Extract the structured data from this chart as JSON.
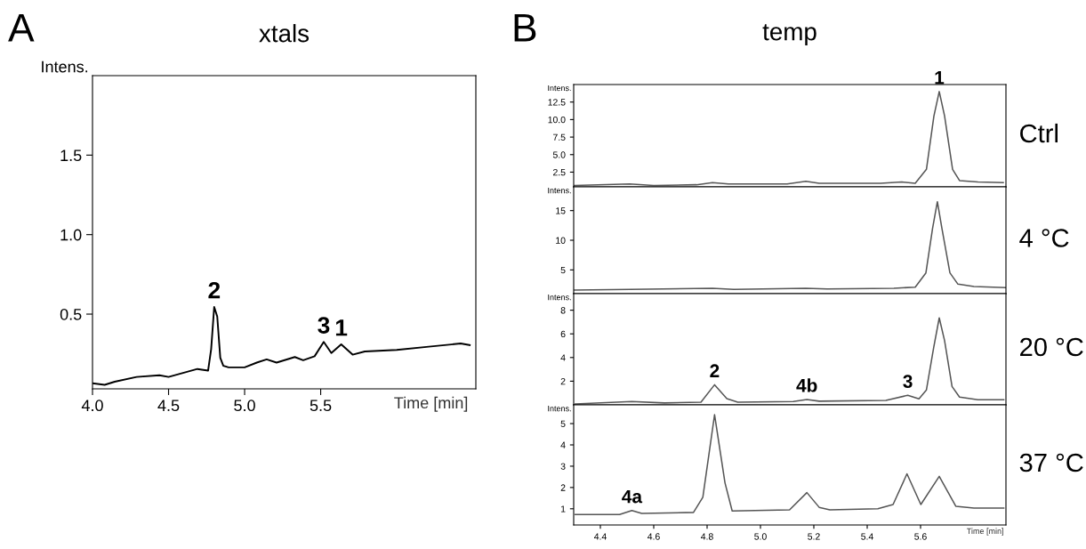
{
  "chart_data": [
    {
      "type": "line",
      "title": "xtals",
      "xlabel": "Time [min]",
      "ylabel": "Intens.",
      "xlim": [
        4.0,
        6.52
      ],
      "ylim": [
        0.03,
        2.0
      ],
      "xticks": [
        {
          "value": 4.0,
          "label": "4.0"
        },
        {
          "value": 4.5,
          "label": "4.5"
        },
        {
          "value": 5.0,
          "label": "5.0"
        },
        {
          "value": 5.5,
          "label": "5.5"
        }
      ],
      "yticks": [
        {
          "value": 0.5,
          "label": "0.5"
        },
        {
          "value": 1.0,
          "label": "1.0"
        },
        {
          "value": 1.5,
          "label": "1.5"
        }
      ],
      "series": [
        {
          "color": "#000000",
          "x": [
            4.0,
            4.08,
            4.146,
            4.29,
            4.44,
            4.5,
            4.69,
            4.76,
            4.78,
            4.8,
            4.82,
            4.84,
            4.86,
            4.895,
            5.0,
            5.08,
            5.145,
            5.21,
            5.33,
            5.385,
            5.46,
            5.52,
            5.57,
            5.635,
            5.71,
            5.79,
            6.0,
            6.21,
            6.42,
            6.48
          ],
          "values": [
            0.065,
            0.055,
            0.075,
            0.105,
            0.115,
            0.105,
            0.155,
            0.145,
            0.28,
            0.545,
            0.485,
            0.225,
            0.175,
            0.165,
            0.165,
            0.195,
            0.215,
            0.195,
            0.23,
            0.21,
            0.235,
            0.325,
            0.255,
            0.31,
            0.245,
            0.265,
            0.275,
            0.295,
            0.315,
            0.305
          ]
        }
      ],
      "annotations": [
        "A",
        {
          "text": "2",
          "x": 4.8,
          "y": 0.545
        },
        {
          "text": "3",
          "x": 5.52,
          "y": 0.325
        },
        {
          "text": "1",
          "x": 5.635,
          "y": 0.31
        }
      ]
    },
    {
      "type": "line",
      "title": "temp",
      "ylabel": "Intens.",
      "xlim": [
        4.3,
        5.92
      ],
      "ylim": [
        0.4,
        15.0
      ],
      "xticks": [
        {
          "value": 4.4,
          "label": null
        },
        {
          "value": 4.6,
          "label": null
        },
        {
          "value": 4.8,
          "label": null
        },
        {
          "value": 5.0,
          "label": null
        },
        {
          "value": 5.2,
          "label": null
        },
        {
          "value": 5.4,
          "label": null
        },
        {
          "value": 5.6,
          "label": null
        }
      ],
      "yticks": [
        {
          "value": 2.5,
          "label": "2.5"
        },
        {
          "value": 5.0,
          "label": "5.0"
        },
        {
          "value": 7.5,
          "label": "7.5"
        },
        {
          "value": 10.0,
          "label": "10.0"
        },
        {
          "value": 12.5,
          "label": "12.5"
        }
      ],
      "tick_labels": "y",
      "series": [
        {
          "color": "#555555",
          "x": [
            4.3,
            4.51,
            4.6,
            4.76,
            4.82,
            4.88,
            5.1,
            5.17,
            5.22,
            5.45,
            5.53,
            5.58,
            5.622,
            5.65,
            5.67,
            5.69,
            5.72,
            5.746,
            5.815,
            5.91
          ],
          "values": [
            0.6,
            0.8,
            0.6,
            0.7,
            1.0,
            0.8,
            0.8,
            1.2,
            0.9,
            0.9,
            1.1,
            0.9,
            2.9,
            10.5,
            14.0,
            10.5,
            2.9,
            1.3,
            1.1,
            1.0
          ]
        }
      ],
      "annotations": [
        "B",
        "Ctrl",
        {
          "text": "1",
          "x": 5.67,
          "y": 14.0
        }
      ]
    },
    {
      "type": "line",
      "ylabel": "Intens.",
      "xlim": [
        4.3,
        5.92
      ],
      "ylim": [
        1.0,
        19.0
      ],
      "xticks": [
        {
          "value": 4.4,
          "label": null
        },
        {
          "value": 4.6,
          "label": null
        },
        {
          "value": 4.8,
          "label": null
        },
        {
          "value": 5.0,
          "label": null
        },
        {
          "value": 5.2,
          "label": null
        },
        {
          "value": 5.4,
          "label": null
        },
        {
          "value": 5.6,
          "label": null
        }
      ],
      "yticks": [
        5,
        10,
        15
      ],
      "tick_labels": "y",
      "series": [
        {
          "color": "#555555",
          "x": [
            4.3,
            4.51,
            4.82,
            4.9,
            5.17,
            5.25,
            5.5,
            5.58,
            5.62,
            5.645,
            5.663,
            5.68,
            5.71,
            5.74,
            5.8,
            5.92
          ],
          "values": [
            1.6,
            1.7,
            1.9,
            1.7,
            1.9,
            1.8,
            1.9,
            2.1,
            4.5,
            12,
            16.5,
            12,
            4.5,
            2.6,
            2.2,
            2.0
          ]
        }
      ],
      "annotations": [
        "4 °C"
      ]
    },
    {
      "type": "line",
      "ylabel": "Intens.",
      "xlim": [
        4.3,
        5.92
      ],
      "ylim": [
        0,
        9.4
      ],
      "xticks": [
        {
          "value": 4.4,
          "label": null
        },
        {
          "value": 4.6,
          "label": null
        },
        {
          "value": 4.8,
          "label": null
        },
        {
          "value": 5.0,
          "label": null
        },
        {
          "value": 5.2,
          "label": null
        },
        {
          "value": 5.4,
          "label": null
        },
        {
          "value": 5.6,
          "label": null
        }
      ],
      "yticks": [
        2,
        4,
        6,
        8
      ],
      "tick_labels": "y",
      "series": [
        {
          "color": "#555555",
          "x": [
            4.306,
            4.518,
            4.64,
            4.777,
            4.828,
            4.874,
            4.915,
            5.123,
            5.174,
            5.22,
            5.47,
            5.552,
            5.594,
            5.622,
            5.649,
            5.67,
            5.69,
            5.718,
            5.746,
            5.815,
            5.912
          ],
          "values": [
            0.07,
            0.28,
            0.16,
            0.22,
            1.7,
            0.52,
            0.22,
            0.28,
            0.46,
            0.31,
            0.37,
            0.81,
            0.51,
            1.26,
            4.82,
            7.35,
            5.42,
            1.55,
            0.66,
            0.43,
            0.43
          ]
        }
      ],
      "annotations": [
        "20 °C",
        {
          "text": "2",
          "x": 4.828,
          "y": 1.7
        },
        {
          "text": "4b",
          "x": 5.174,
          "y": 0.46
        },
        {
          "text": "3",
          "x": 5.552,
          "y": 0.81
        }
      ]
    },
    {
      "type": "line",
      "xlabel": "Time [min]",
      "ylabel": "Intens.",
      "xlim": [
        4.3,
        5.92
      ],
      "ylim": [
        0.24,
        5.88
      ],
      "xticks": [
        4.4,
        4.6,
        4.8,
        {
          "value": 5.0,
          "label": "5.0"
        },
        5.2,
        5.4,
        5.6
      ],
      "yticks": [
        1,
        2,
        3,
        4,
        5
      ],
      "series": [
        {
          "color": "#555555",
          "x": [
            4.306,
            4.472,
            4.518,
            4.555,
            4.749,
            4.784,
            4.828,
            4.867,
            4.894,
            5.109,
            5.174,
            5.22,
            5.26,
            5.44,
            5.497,
            5.549,
            5.601,
            5.67,
            5.732,
            5.8,
            5.912
          ],
          "values": [
            0.73,
            0.73,
            0.92,
            0.78,
            0.83,
            1.54,
            5.42,
            2.22,
            0.9,
            0.95,
            1.76,
            1.07,
            0.95,
            1.0,
            1.2,
            2.64,
            1.2,
            2.52,
            1.12,
            1.03,
            1.03
          ]
        }
      ],
      "annotations": [
        "37 °C",
        {
          "text": "4a",
          "x": 4.518,
          "y": 0.92
        }
      ]
    }
  ]
}
